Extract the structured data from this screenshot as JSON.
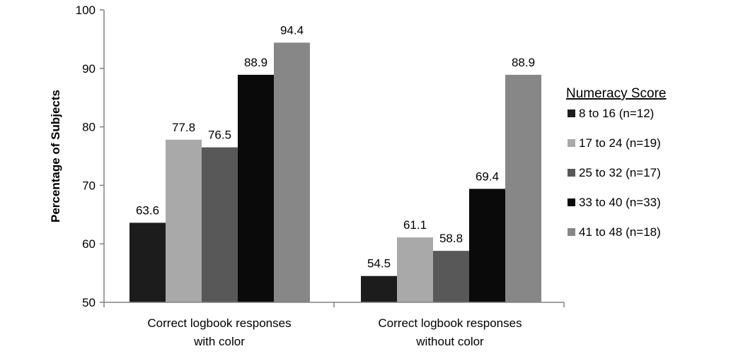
{
  "chart_data": {
    "type": "bar",
    "title": "",
    "xlabel": "",
    "ylabel": "Percentage of Subjects",
    "ylim": [
      50,
      100
    ],
    "yticks": [
      50,
      60,
      70,
      80,
      90,
      100
    ],
    "grid": false,
    "legend": {
      "title": "Numeracy Score",
      "placement": "right"
    },
    "categories": [
      [
        "Correct logbook responses",
        "with color"
      ],
      [
        "Correct logbook responses",
        "without color"
      ]
    ],
    "series": [
      {
        "name": "8 to 16 (n=12)",
        "values": [
          63.6,
          54.5
        ],
        "color": "#1c1c1c"
      },
      {
        "name": "17 to 24 (n=19)",
        "values": [
          77.8,
          61.1
        ],
        "color": "#a9a9a9"
      },
      {
        "name": "25 to 32 (n=17)",
        "values": [
          76.5,
          58.8
        ],
        "color": "#585858"
      },
      {
        "name": "33 to 40 (n=33)",
        "values": [
          88.9,
          69.4
        ],
        "color": "#0a0a0a"
      },
      {
        "name": "41 to 48 (n=18)",
        "values": [
          94.4,
          88.9
        ],
        "color": "#878787"
      }
    ],
    "data_labels": [
      [
        "63.6",
        "54.5"
      ],
      [
        "77.8",
        "61.1"
      ],
      [
        "76.5",
        "58.8"
      ],
      [
        "88.9",
        "69.4"
      ],
      [
        "94.4",
        "88.9"
      ]
    ]
  }
}
